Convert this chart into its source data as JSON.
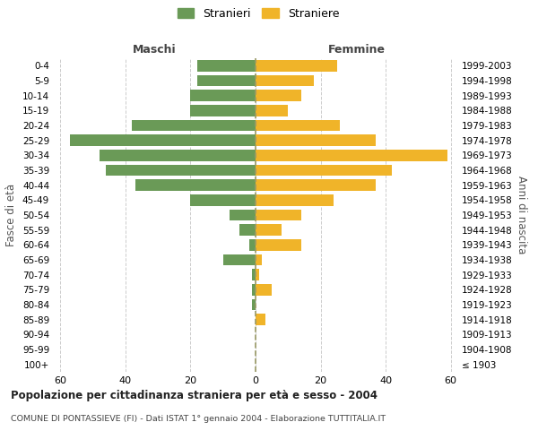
{
  "age_groups": [
    "100+",
    "95-99",
    "90-94",
    "85-89",
    "80-84",
    "75-79",
    "70-74",
    "65-69",
    "60-64",
    "55-59",
    "50-54",
    "45-49",
    "40-44",
    "35-39",
    "30-34",
    "25-29",
    "20-24",
    "15-19",
    "10-14",
    "5-9",
    "0-4"
  ],
  "birth_years": [
    "≤ 1903",
    "1904-1908",
    "1909-1913",
    "1914-1918",
    "1919-1923",
    "1924-1928",
    "1929-1933",
    "1934-1938",
    "1939-1943",
    "1944-1948",
    "1949-1953",
    "1954-1958",
    "1959-1963",
    "1964-1968",
    "1969-1973",
    "1974-1978",
    "1979-1983",
    "1984-1988",
    "1989-1993",
    "1994-1998",
    "1999-2003"
  ],
  "males": [
    0,
    0,
    0,
    0,
    1,
    1,
    1,
    10,
    2,
    5,
    8,
    20,
    37,
    46,
    48,
    57,
    38,
    20,
    20,
    18,
    18
  ],
  "females": [
    0,
    0,
    0,
    3,
    0,
    5,
    1,
    2,
    14,
    8,
    14,
    24,
    37,
    42,
    59,
    37,
    26,
    10,
    14,
    18,
    25
  ],
  "male_color": "#6a9a57",
  "female_color": "#f0b429",
  "male_label": "Stranieri",
  "female_label": "Straniere",
  "title": "Popolazione per cittadinanza straniera per età e sesso - 2004",
  "subtitle": "COMUNE DI PONTASSIEVE (FI) - Dati ISTAT 1° gennaio 2004 - Elaborazione TUTTITALIA.IT",
  "xlabel_left": "Maschi",
  "xlabel_right": "Femmine",
  "ylabel_left": "Fasce di età",
  "ylabel_right": "Anni di nascita",
  "xlim": 62,
  "background_color": "#ffffff",
  "grid_color": "#cccccc",
  "dashed_line_color": "#999966"
}
